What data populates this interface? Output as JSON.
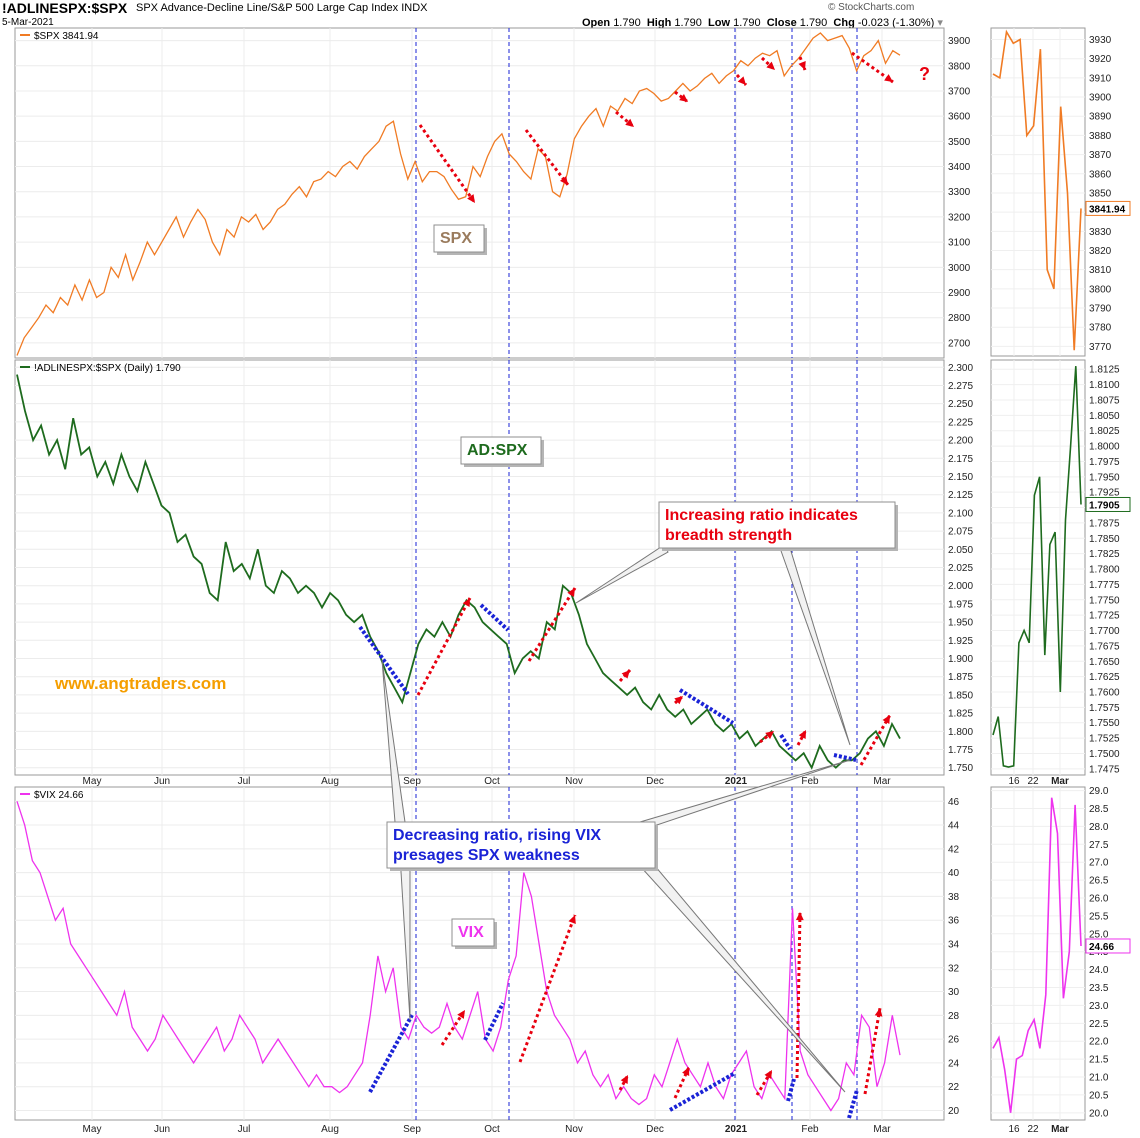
{
  "header": {
    "symbol": "!ADLINESPX:$SPX",
    "description": "SPX Advance-Decline Line/S&P 500 Large Cap Index  INDX",
    "date": "5-Mar-2021",
    "copyright": "© StockCharts.com",
    "open_label": "Open",
    "open": "1.790",
    "high_label": "High",
    "high": "1.790",
    "low_label": "Low",
    "low": "1.790",
    "close_label": "Close",
    "close": "1.790",
    "chg_label": "Chg",
    "chg": "-0.023 (-1.30%)"
  },
  "colors": {
    "spx": "#f07b24",
    "adline": "#1e6b1e",
    "vix": "#ee33ee",
    "annotation_red": "#e8000f",
    "annotation_blue": "#1a23d6",
    "vline": "#1a23d6",
    "website": "#f59e00"
  },
  "chart_data": [
    {
      "type": "line",
      "legend": "$SPX 3841.94",
      "panel_label": "SPX",
      "last_value": "3841.94",
      "y_ticks": [
        2700,
        2800,
        2900,
        3000,
        3100,
        3200,
        3300,
        3400,
        3500,
        3600,
        3700,
        3800,
        3900
      ],
      "ylim": [
        2640,
        3950
      ],
      "series": [
        {
          "values": [
            2650,
            2720,
            2760,
            2800,
            2850,
            2820,
            2880,
            2850,
            2930,
            2870,
            2950,
            2880,
            2900,
            3000,
            2960,
            3050,
            2950,
            3020,
            3100,
            3050,
            3100,
            3150,
            3200,
            3120,
            3180,
            3230,
            3190,
            3100,
            3050,
            3150,
            3120,
            3200,
            3180,
            3210,
            3150,
            3180,
            3230,
            3250,
            3290,
            3320,
            3280,
            3340,
            3350,
            3380,
            3360,
            3400,
            3420,
            3390,
            3440,
            3470,
            3500,
            3560,
            3580,
            3450,
            3350,
            3420,
            3340,
            3380,
            3380,
            3360,
            3310,
            3270,
            3280,
            3400,
            3360,
            3440,
            3500,
            3530,
            3450,
            3420,
            3380,
            3350,
            3470,
            3440,
            3300,
            3280,
            3370,
            3510,
            3560,
            3600,
            3630,
            3560,
            3640,
            3620,
            3670,
            3650,
            3700,
            3710,
            3690,
            3660,
            3670,
            3700,
            3730,
            3700,
            3720,
            3750,
            3770,
            3730,
            3760,
            3780,
            3820,
            3800,
            3830,
            3850,
            3840,
            3860,
            3760,
            3800,
            3830,
            3870,
            3910,
            3930,
            3900,
            3910,
            3920,
            3870,
            3780,
            3840,
            3860,
            3900,
            3810,
            3860,
            3841.94
          ]
        }
      ],
      "annotations": [
        "?"
      ]
    },
    {
      "type": "line",
      "legend": "!ADLINESPX:$SPX (Daily) 1.790",
      "panel_label": "AD:SPX",
      "last_value": "1.7905",
      "y_ticks": [
        1.75,
        1.775,
        1.8,
        1.825,
        1.85,
        1.875,
        1.9,
        1.925,
        1.95,
        1.975,
        2.0,
        2.025,
        2.05,
        2.075,
        2.1,
        2.125,
        2.15,
        2.175,
        2.2,
        2.225,
        2.25,
        2.275,
        2.3
      ],
      "ylim": [
        1.74,
        2.31
      ],
      "series": [
        {
          "values": [
            2.29,
            2.24,
            2.2,
            2.22,
            2.18,
            2.2,
            2.16,
            2.23,
            2.18,
            2.19,
            2.15,
            2.17,
            2.14,
            2.18,
            2.15,
            2.13,
            2.17,
            2.14,
            2.11,
            2.1,
            2.06,
            2.07,
            2.04,
            2.03,
            1.99,
            1.98,
            2.06,
            2.02,
            2.03,
            2.01,
            2.05,
            2.0,
            1.99,
            2.02,
            2.01,
            1.99,
            2.0,
            1.99,
            1.97,
            1.99,
            1.98,
            1.96,
            1.95,
            1.96,
            1.93,
            1.91,
            1.88,
            1.86,
            1.84,
            1.88,
            1.92,
            1.94,
            1.93,
            1.95,
            1.93,
            1.96,
            1.98,
            1.97,
            1.95,
            1.94,
            1.93,
            1.92,
            1.88,
            1.9,
            1.91,
            1.9,
            1.95,
            1.94,
            2.0,
            1.99,
            1.96,
            1.92,
            1.9,
            1.88,
            1.87,
            1.86,
            1.85,
            1.86,
            1.84,
            1.83,
            1.85,
            1.83,
            1.82,
            1.83,
            1.81,
            1.82,
            1.83,
            1.81,
            1.8,
            1.81,
            1.79,
            1.8,
            1.78,
            1.79,
            1.8,
            1.78,
            1.77,
            1.76,
            1.77,
            1.75,
            1.78,
            1.76,
            1.75,
            1.76,
            1.76,
            1.77,
            1.79,
            1.8,
            1.78,
            1.81,
            1.79
          ]
        }
      ],
      "callouts": [
        {
          "text_line1": "Increasing ratio indicates",
          "text_line2": "breadth strength"
        }
      ],
      "website": "www.angtraders.com"
    },
    {
      "type": "line",
      "legend": "$VIX 24.66",
      "panel_label": "VIX",
      "last_value": "24.66",
      "y_ticks": [
        20,
        22,
        24,
        26,
        28,
        30,
        32,
        34,
        36,
        38,
        40,
        42,
        44,
        46
      ],
      "ylim": [
        19.2,
        47.2
      ],
      "x_ticks": [
        "May",
        "Jun",
        "Jul",
        "Aug",
        "Sep",
        "Oct",
        "Nov",
        "Dec",
        "2021",
        "Feb",
        "Mar"
      ],
      "series": [
        {
          "values": [
            46,
            44,
            41,
            40,
            38,
            36,
            37,
            34,
            33,
            32,
            31,
            30,
            29,
            28,
            30,
            27,
            26,
            25,
            26,
            28,
            27,
            26,
            25,
            24,
            25,
            26,
            27,
            25,
            26,
            28,
            27,
            26,
            24,
            25,
            26,
            25,
            24,
            23,
            22,
            23,
            22,
            22,
            21.5,
            22,
            23,
            24,
            28,
            33,
            30,
            32,
            27,
            26,
            28,
            27,
            26.5,
            27,
            29,
            27,
            26,
            28,
            30,
            26,
            25,
            27,
            31,
            33,
            40,
            38,
            34,
            30,
            28,
            27,
            26,
            24,
            25,
            23,
            22,
            23,
            21,
            22,
            21,
            20.5,
            21,
            23,
            22,
            24,
            26,
            24,
            23,
            22,
            24,
            22,
            21,
            23,
            24,
            25,
            22,
            21,
            23,
            22,
            21,
            37,
            25,
            23,
            22,
            21,
            20,
            21,
            24,
            23,
            28,
            27,
            22,
            24,
            28,
            24.66
          ]
        }
      ],
      "callouts": [
        {
          "text_line1": "Decreasing ratio, rising VIX",
          "text_line2": "presages SPX weakness"
        }
      ]
    },
    {
      "type": "line",
      "panel": "zoom-spx",
      "last_value": "3841.94",
      "y_ticks": [
        3770,
        3780,
        3790,
        3800,
        3810,
        3820,
        3830,
        3840,
        3850,
        3860,
        3870,
        3880,
        3890,
        3900,
        3910,
        3920,
        3930
      ],
      "ylim": [
        3765,
        3936
      ],
      "series": [
        {
          "values": [
            3912,
            3910,
            3934,
            3928,
            3930,
            3880,
            3885,
            3925,
            3810,
            3800,
            3895,
            3850,
            3768,
            3841.94
          ]
        }
      ]
    },
    {
      "type": "line",
      "panel": "zoom-adline",
      "last_value": "1.7905",
      "y_ticks": [
        1.7475,
        1.75,
        1.7525,
        1.755,
        1.7575,
        1.76,
        1.7625,
        1.765,
        1.7675,
        1.77,
        1.7725,
        1.775,
        1.7775,
        1.78,
        1.7825,
        1.785,
        1.7875,
        1.79,
        1.7925,
        1.795,
        1.7975,
        1.8,
        1.8025,
        1.805,
        1.8075,
        1.81,
        1.8125
      ],
      "ylim": [
        1.7465,
        1.814
      ],
      "series": [
        {
          "values": [
            1.753,
            1.756,
            1.748,
            1.7478,
            1.748,
            1.768,
            1.77,
            1.768,
            1.792,
            1.795,
            1.766,
            1.784,
            1.786,
            1.76,
            1.788,
            1.8,
            1.813,
            1.7905
          ]
        }
      ]
    },
    {
      "type": "line",
      "panel": "zoom-vix",
      "last_value": "24.66",
      "y_ticks": [
        20.0,
        20.5,
        21.0,
        21.5,
        22.0,
        22.5,
        23.0,
        23.5,
        24.0,
        24.5,
        25.0,
        25.5,
        26.0,
        26.5,
        27.0,
        27.5,
        28.0,
        28.5,
        29.0
      ],
      "ylim": [
        19.8,
        29.1
      ],
      "x_ticks": [
        "16",
        "22",
        "Mar"
      ],
      "series": [
        {
          "values": [
            21.8,
            22.1,
            21.2,
            20.0,
            21.5,
            21.6,
            22.3,
            22.6,
            21.8,
            23.3,
            28.8,
            27.8,
            23.2,
            24.5,
            28.6,
            24.66
          ]
        }
      ]
    }
  ]
}
